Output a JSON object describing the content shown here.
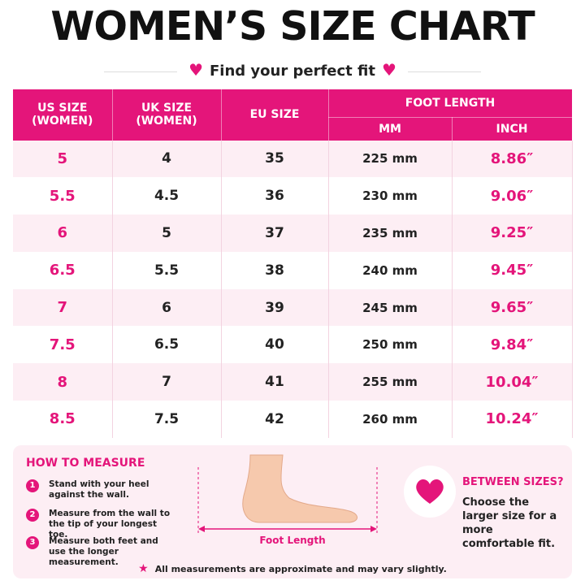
{
  "header": {
    "title": "WOMEN’S SIZE CHART",
    "subtitle": "Find your perfect fit"
  },
  "table": {
    "headers": [
      "US SIZE (WOMEN)",
      "UK SIZE (WOMEN)",
      "EU SIZE",
      "FOOT LENGTH",
      "MM",
      "INCH"
    ],
    "rows": [
      [
        "5",
        "4",
        "35",
        "225 mm",
        "8.86″"
      ],
      [
        "5.5",
        "4.5",
        "36",
        "230 mm",
        "9.06″"
      ],
      [
        "6",
        "5",
        "37",
        "235 mm",
        "9.25″"
      ],
      [
        "6.5",
        "5.5",
        "38",
        "240 mm",
        "9.45″"
      ],
      [
        "7",
        "6",
        "39",
        "245 mm",
        "9.65″"
      ],
      [
        "7.5",
        "6.5",
        "40",
        "250 mm",
        "9.84″"
      ],
      [
        "8",
        "7",
        "41",
        "255 mm",
        "10.04″"
      ],
      [
        "8.5",
        "7.5",
        "42",
        "260 mm",
        "10.24″"
      ]
    ]
  },
  "measure": {
    "title": "HOW TO MEASURE",
    "steps": [
      {
        "number": "1",
        "text": "Stand with your heel against the wall."
      },
      {
        "number": "2",
        "text": "Measure from the wall to the tip of your longest toe."
      },
      {
        "number": "3",
        "text": "Measure both feet and use the longer measurement."
      }
    ],
    "diagram_label": "Foot Length"
  },
  "between_sizes": {
    "title": "BETWEEN SIZES?",
    "text": "Choose the larger size for a more comfortable fit."
  },
  "footnote": "All measurements are approximate and may vary slightly."
}
